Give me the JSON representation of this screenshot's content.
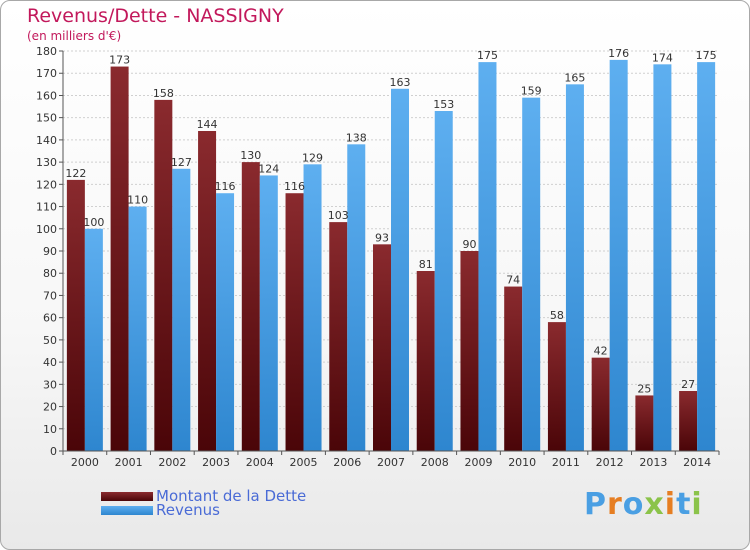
{
  "title": "Revenus/Dette - NASSIGNY",
  "subtitle": "(en milliers d'€)",
  "colors": {
    "debt": "#7a1418",
    "revenue": "#4a9fe3",
    "title": "#c2185b",
    "legend_text": "#4a6bd6"
  },
  "logo": {
    "letters": [
      "P",
      "r",
      "o",
      "x",
      "i",
      "t",
      "i"
    ],
    "colors": [
      "#4a9fe3",
      "#e67e22",
      "#4a9fe3",
      "#8bc34a",
      "#e67e22",
      "#4a9fe3",
      "#8bc34a"
    ]
  },
  "chart_data": {
    "type": "bar",
    "title": "Revenus/Dette - NASSIGNY",
    "subtitle": "(en milliers d'€)",
    "categories": [
      "2000",
      "2001",
      "2002",
      "2003",
      "2004",
      "2005",
      "2006",
      "2007",
      "2008",
      "2009",
      "2010",
      "2011",
      "2012",
      "2013",
      "2014"
    ],
    "series": [
      {
        "name": "Montant de la Dette",
        "values": [
          122,
          173,
          158,
          144,
          130,
          116,
          103,
          93,
          81,
          90,
          74,
          58,
          42,
          25,
          27
        ]
      },
      {
        "name": "Revenus",
        "values": [
          100,
          110,
          127,
          116,
          124,
          129,
          138,
          163,
          153,
          175,
          159,
          165,
          176,
          174,
          175
        ]
      }
    ],
    "ylim": [
      0,
      180
    ],
    "yticks": [
      0,
      10,
      20,
      30,
      40,
      50,
      60,
      70,
      80,
      90,
      100,
      110,
      120,
      130,
      140,
      150,
      160,
      170,
      180
    ],
    "grid": true,
    "legend": "bottom-left"
  }
}
